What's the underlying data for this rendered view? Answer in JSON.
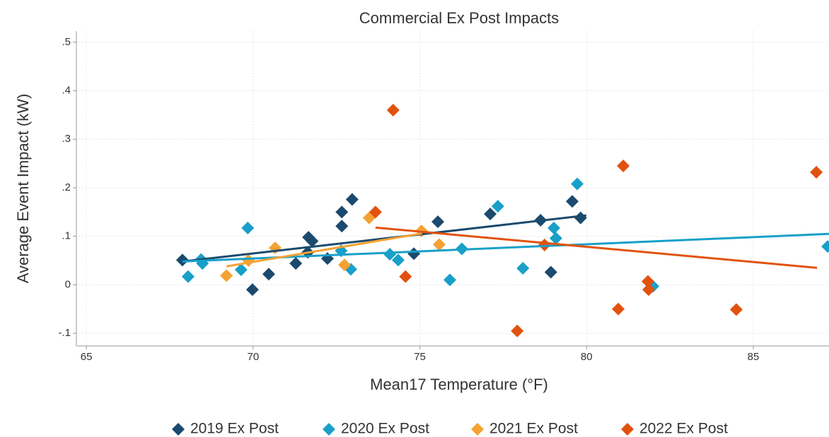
{
  "chart_data": {
    "type": "scatter",
    "title": "Commercial Ex Post Impacts",
    "x_label": "Mean17 Temperature (°F)",
    "y_label": "Average Event Impact (kW)",
    "xlim": [
      64.7,
      87.27
    ],
    "ylim": [
      -0.126,
      0.523
    ],
    "xticks": [
      65,
      70,
      75,
      80,
      85
    ],
    "yticks": [
      {
        "value": 0.5,
        "label": ".5"
      },
      {
        "value": 0.4,
        "label": ".4"
      },
      {
        "value": 0.3,
        "label": ".3"
      },
      {
        "value": 0.2,
        "label": ".2"
      },
      {
        "value": 0.1,
        "label": ".1"
      },
      0,
      {
        "value": -0.1,
        "label": "-.1"
      }
    ],
    "grid": true,
    "legend": "bottom",
    "series": [
      {
        "name": "2019 Ex Post",
        "color": "#1b4a6e",
        "x": [
          67.88,
          69.98,
          70.47,
          71.28,
          71.66,
          71.77,
          71.64,
          72.23,
          72.66,
          72.66,
          72.97,
          74.82,
          75.54,
          77.11,
          78.62,
          78.93,
          79.57,
          79.82
        ],
        "values": [
          0.051,
          -0.01,
          0.022,
          0.044,
          0.098,
          0.09,
          0.067,
          0.054,
          0.121,
          0.15,
          0.176,
          0.064,
          0.13,
          0.146,
          0.133,
          0.026,
          0.172,
          0.138
        ],
        "fit_x": [
          67.88,
          79.99
        ],
        "fit_y": [
          0.048,
          0.143
        ]
      },
      {
        "name": "2020 Ex Post",
        "color": "#18a0c8",
        "x": [
          68.05,
          68.44,
          68.48,
          69.84,
          69.64,
          72.64,
          72.93,
          74.1,
          74.35,
          75.9,
          76.26,
          77.34,
          78.09,
          79.02,
          79.08,
          79.72,
          81.99,
          87.23
        ],
        "values": [
          0.017,
          0.052,
          0.044,
          0.117,
          0.031,
          0.07,
          0.032,
          0.063,
          0.051,
          0.01,
          0.074,
          0.162,
          0.034,
          0.117,
          0.096,
          0.208,
          -0.003,
          0.079
        ],
        "fit_x": [
          67.88,
          87.27
        ],
        "fit_y": [
          0.048,
          0.105
        ]
      },
      {
        "name": "2021 Ex Post",
        "color": "#f4a233",
        "x": [
          69.2,
          69.86,
          70.66,
          72.74,
          73.48,
          75.05,
          75.58
        ],
        "values": [
          0.019,
          0.05,
          0.076,
          0.041,
          0.138,
          0.111,
          0.083
        ],
        "fit_x": [
          69.2,
          75.07
        ],
        "fit_y": [
          0.038,
          0.106
        ]
      },
      {
        "name": "2022 Ex Post",
        "color": "#e2520f",
        "x": [
          74.2,
          73.67,
          74.57,
          77.92,
          78.74,
          80.95,
          81.1,
          81.84,
          81.86,
          84.49,
          86.89
        ],
        "values": [
          0.36,
          0.15,
          0.017,
          -0.095,
          0.082,
          -0.05,
          0.245,
          0.007,
          -0.01,
          -0.051,
          0.232
        ],
        "fit_x": [
          73.67,
          86.91
        ],
        "fit_y": [
          0.118,
          0.035
        ]
      }
    ]
  }
}
